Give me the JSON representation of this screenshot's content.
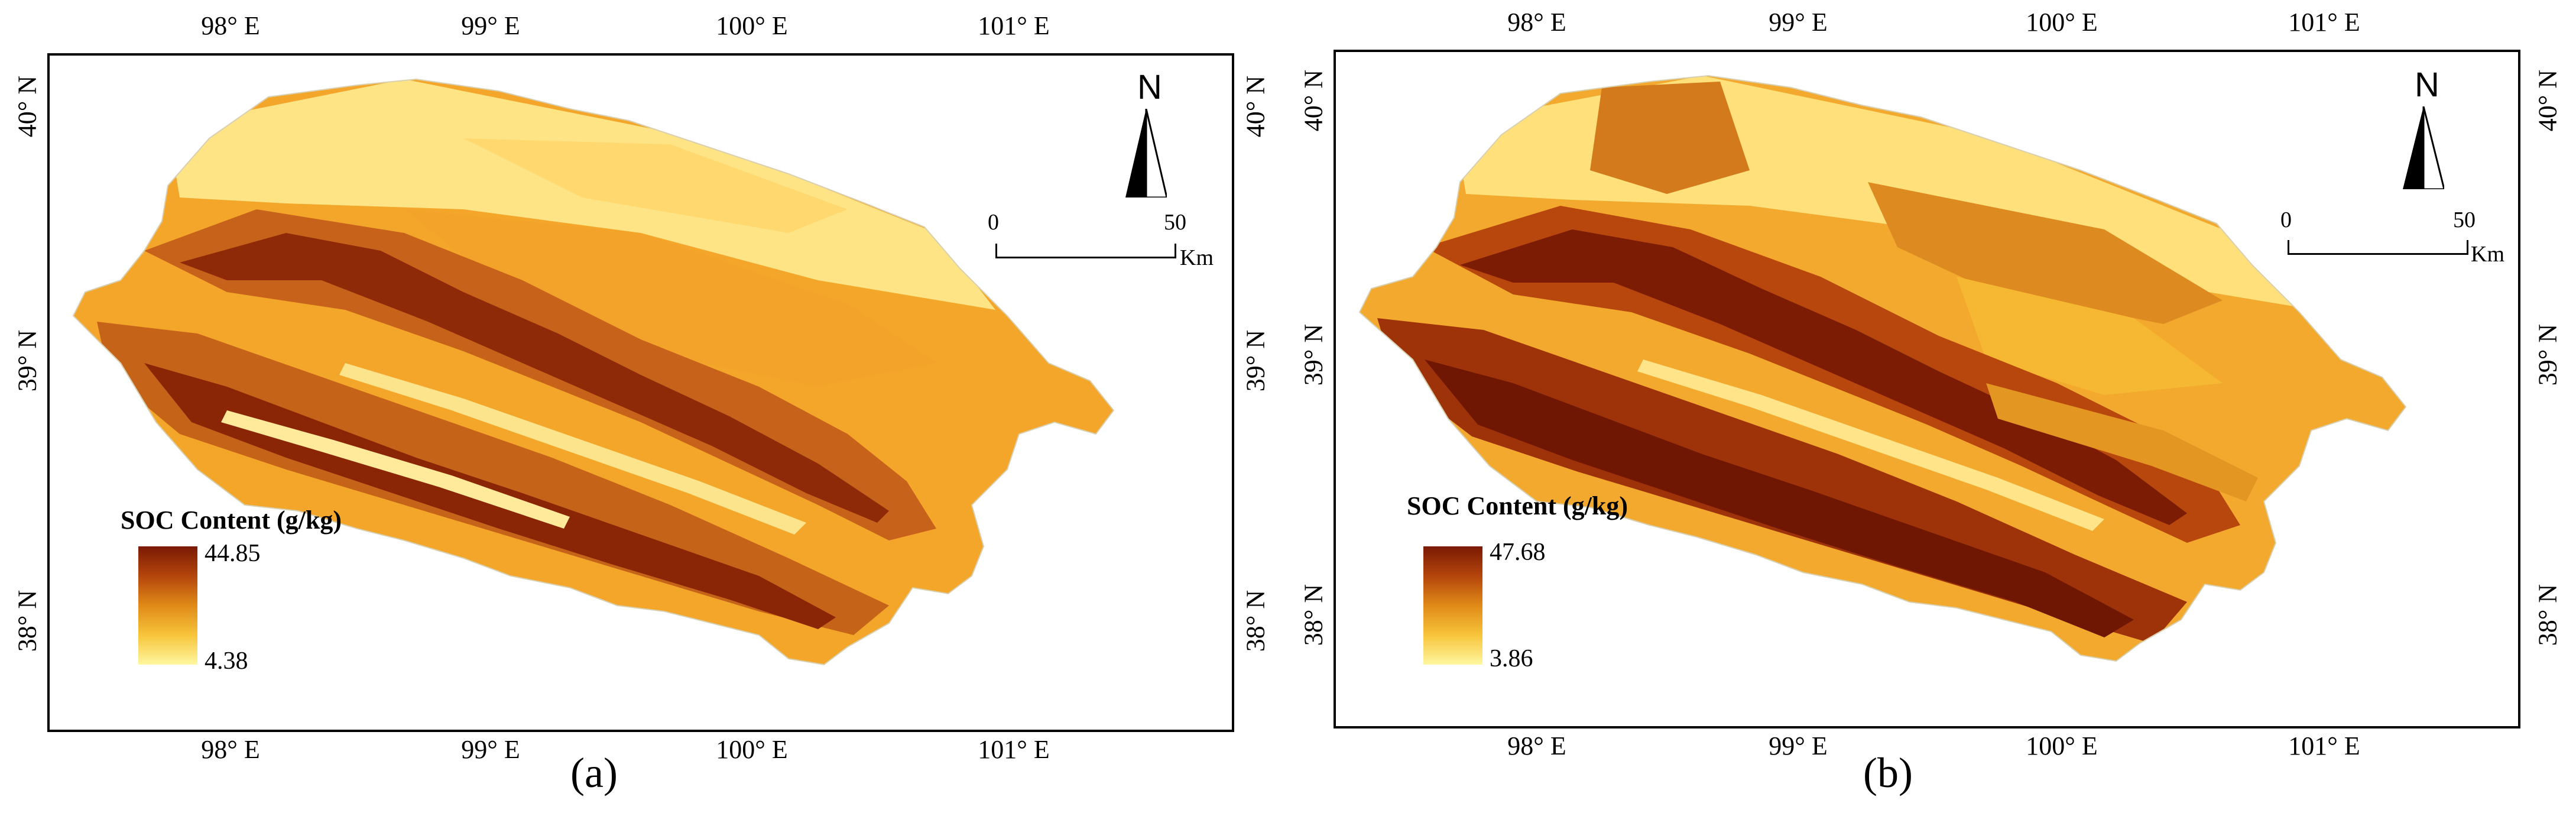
{
  "colors": {
    "dark": "#7a1a04",
    "mid": "#d9731a",
    "orange": "#f2a524",
    "light": "#ffd65a",
    "pale": "#ffe98a"
  },
  "panels": [
    {
      "id": "a",
      "caption": "(a)",
      "lon_labels": [
        "98° E",
        "99° E",
        "100° E",
        "101° E"
      ],
      "lat_labels": [
        "40° N",
        "39° N",
        "38° N"
      ],
      "legend": {
        "title": "SOC Content (g/kg)",
        "max": "44.85",
        "min": "4.38"
      },
      "scale": {
        "start": "0",
        "end": "50",
        "unit": "Km"
      },
      "north": "N"
    },
    {
      "id": "b",
      "caption": "(b)",
      "lon_labels": [
        "98° E",
        "99° E",
        "100° E",
        "101° E"
      ],
      "lat_labels": [
        "40° N",
        "39° N",
        "38° N"
      ],
      "legend": {
        "title": "SOC Content (g/kg)",
        "max": "47.68",
        "min": "3.86"
      },
      "scale": {
        "start": "0",
        "end": "50",
        "unit": "Km"
      },
      "north": "N"
    }
  ]
}
